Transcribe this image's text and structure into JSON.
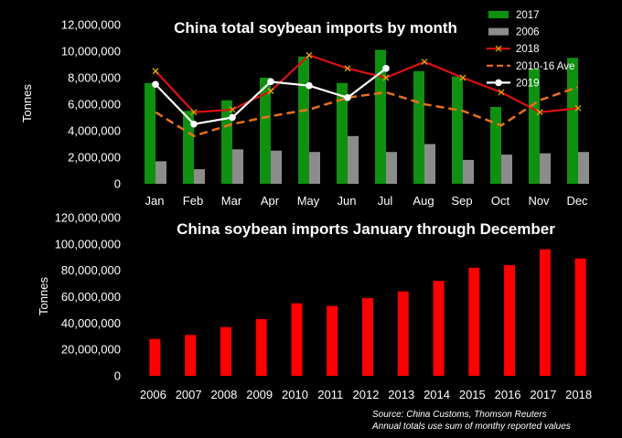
{
  "colors": {
    "background": "#000000",
    "bar_2017": "#109010",
    "bar_2006": "#8c8c8c",
    "line_2018": "#e01010",
    "line_avg": "#e8701a",
    "line_2019": "#ffffff",
    "annual_bar": "#ff0000"
  },
  "chart_data": [
    {
      "type": "bar",
      "title": "China total soybean imports by month",
      "xlabel": "",
      "ylabel": "Tonnes",
      "ylim": [
        0,
        12000000
      ],
      "yticks": [
        "0",
        "2,000,000",
        "4,000,000",
        "6,000,000",
        "8,000,000",
        "10,000,000",
        "12,000,000"
      ],
      "categories": [
        "Jan",
        "Feb",
        "Mar",
        "Apr",
        "May",
        "Jun",
        "Jul",
        "Aug",
        "Sep",
        "Oct",
        "Nov",
        "Dec"
      ],
      "legend_position": "top-right",
      "series": [
        {
          "name": "2017",
          "kind": "bar",
          "color": "#109010",
          "values": [
            7600000,
            5500000,
            6300000,
            8000000,
            9600000,
            7600000,
            10100000,
            8500000,
            8100000,
            5800000,
            8700000,
            9500000
          ]
        },
        {
          "name": "2006",
          "kind": "bar",
          "color": "#8c8c8c",
          "values": [
            1700000,
            1100000,
            2600000,
            2500000,
            2400000,
            3600000,
            2400000,
            3000000,
            1800000,
            2200000,
            2300000,
            2400000
          ]
        },
        {
          "name": "2018",
          "kind": "line",
          "marker": "x",
          "color": "#e01010",
          "values": [
            8500000,
            5400000,
            5600000,
            7000000,
            9700000,
            8700000,
            8000000,
            9200000,
            8000000,
            6900000,
            5400000,
            5700000
          ]
        },
        {
          "name": "2010-16 Ave",
          "kind": "line",
          "dash": true,
          "color": "#e8701a",
          "values": [
            5400000,
            3600000,
            4500000,
            5100000,
            5600000,
            6500000,
            6900000,
            6000000,
            5500000,
            4400000,
            6300000,
            7300000
          ]
        },
        {
          "name": "2019",
          "kind": "line",
          "marker": "circle",
          "color": "#ffffff",
          "values": [
            7500000,
            4500000,
            5000000,
            7700000,
            7400000,
            6500000,
            8700000,
            null,
            null,
            null,
            null,
            null
          ]
        }
      ]
    },
    {
      "type": "bar",
      "title": "China soybean imports January through December",
      "xlabel": "",
      "ylabel": "Tonnes",
      "ylim": [
        0,
        120000000
      ],
      "yticks": [
        "0",
        "20,000,000",
        "40,000,000",
        "60,000,000",
        "80,000,000",
        "100,000,000",
        "120,000,000"
      ],
      "categories": [
        "2006",
        "2007",
        "2008",
        "2009",
        "2010",
        "2011",
        "2012",
        "2013",
        "2014",
        "2015",
        "2016",
        "2017",
        "2018"
      ],
      "values": [
        28000000,
        31000000,
        37000000,
        43000000,
        55000000,
        53000000,
        59000000,
        64000000,
        72000000,
        82000000,
        84000000,
        96000000,
        89000000
      ]
    }
  ],
  "source": {
    "line1": "Source:  China Customs, Thomson Reuters",
    "line2": "Annual totals use sum of monthy reported values"
  }
}
